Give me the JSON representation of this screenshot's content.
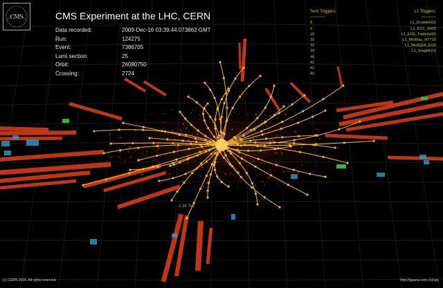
{
  "title": "CMS Experiment at the LHC, CERN",
  "logo_text": "CMS",
  "event_info": [
    {
      "label": "Data recorded:",
      "value": "2009-Dec-16 03:39:44.073862 GMT"
    },
    {
      "label": "Run:",
      "value": "124275"
    },
    {
      "label": "Event:",
      "value": "7386705"
    },
    {
      "label": "Lumi section:",
      "value": "25"
    },
    {
      "label": "Orbit:",
      "value": "26080750"
    },
    {
      "label": "Crossing:",
      "value": "2724"
    }
  ],
  "tech_triggers": {
    "heading": "Tech Triggers:",
    "rule": "————",
    "items": [
      "8",
      "9",
      "10",
      "32",
      "33",
      "34",
      "40",
      "41",
      "42",
      "43"
    ]
  },
  "l1_triggers": {
    "heading": "L1 Triggers:",
    "rule": "————",
    "items": [
      "L1_DoubleEG1",
      "L1_EG1_Jet15",
      "L1_EG5_TripleJet15",
      "L1_MinBias_HTT10",
      "L1_Mu3QE8_EG5",
      "L1_SingleEG1"
    ]
  },
  "energy_label": "2.36 TeV",
  "footer_left": "(c) CERN 2009. All rights reserved.",
  "footer_right": "http://iguana.cern.ch/ispy",
  "colors": {
    "background": "#000000",
    "tracks": "#f2b23a",
    "hcal": "#d23c1a",
    "ecal": "#e05a20",
    "muon_chamber": "#2d9fc4",
    "green_hits": "#3fae3a",
    "trigger_text": "#c8c83c"
  }
}
